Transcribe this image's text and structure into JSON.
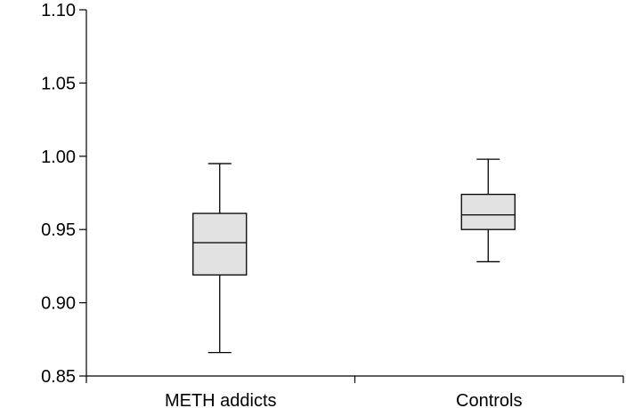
{
  "chart_data": {
    "type": "boxplot",
    "title": "",
    "xlabel": "",
    "ylabel": "",
    "ylim": [
      0.85,
      1.1
    ],
    "yticks": [
      "0.85",
      "0.90",
      "0.95",
      "1.00",
      "1.05",
      "1.10"
    ],
    "categories": [
      "METH addicts",
      "Controls"
    ],
    "boxes": [
      {
        "category": "METH addicts",
        "min": 0.866,
        "q1": 0.919,
        "median": 0.941,
        "q3": 0.961,
        "max": 0.995
      },
      {
        "category": "Controls",
        "min": 0.928,
        "q1": 0.95,
        "median": 0.96,
        "q3": 0.974,
        "max": 0.998
      }
    ],
    "grid": false,
    "box_color": "#e2e2e2",
    "line_color": "#000000"
  }
}
